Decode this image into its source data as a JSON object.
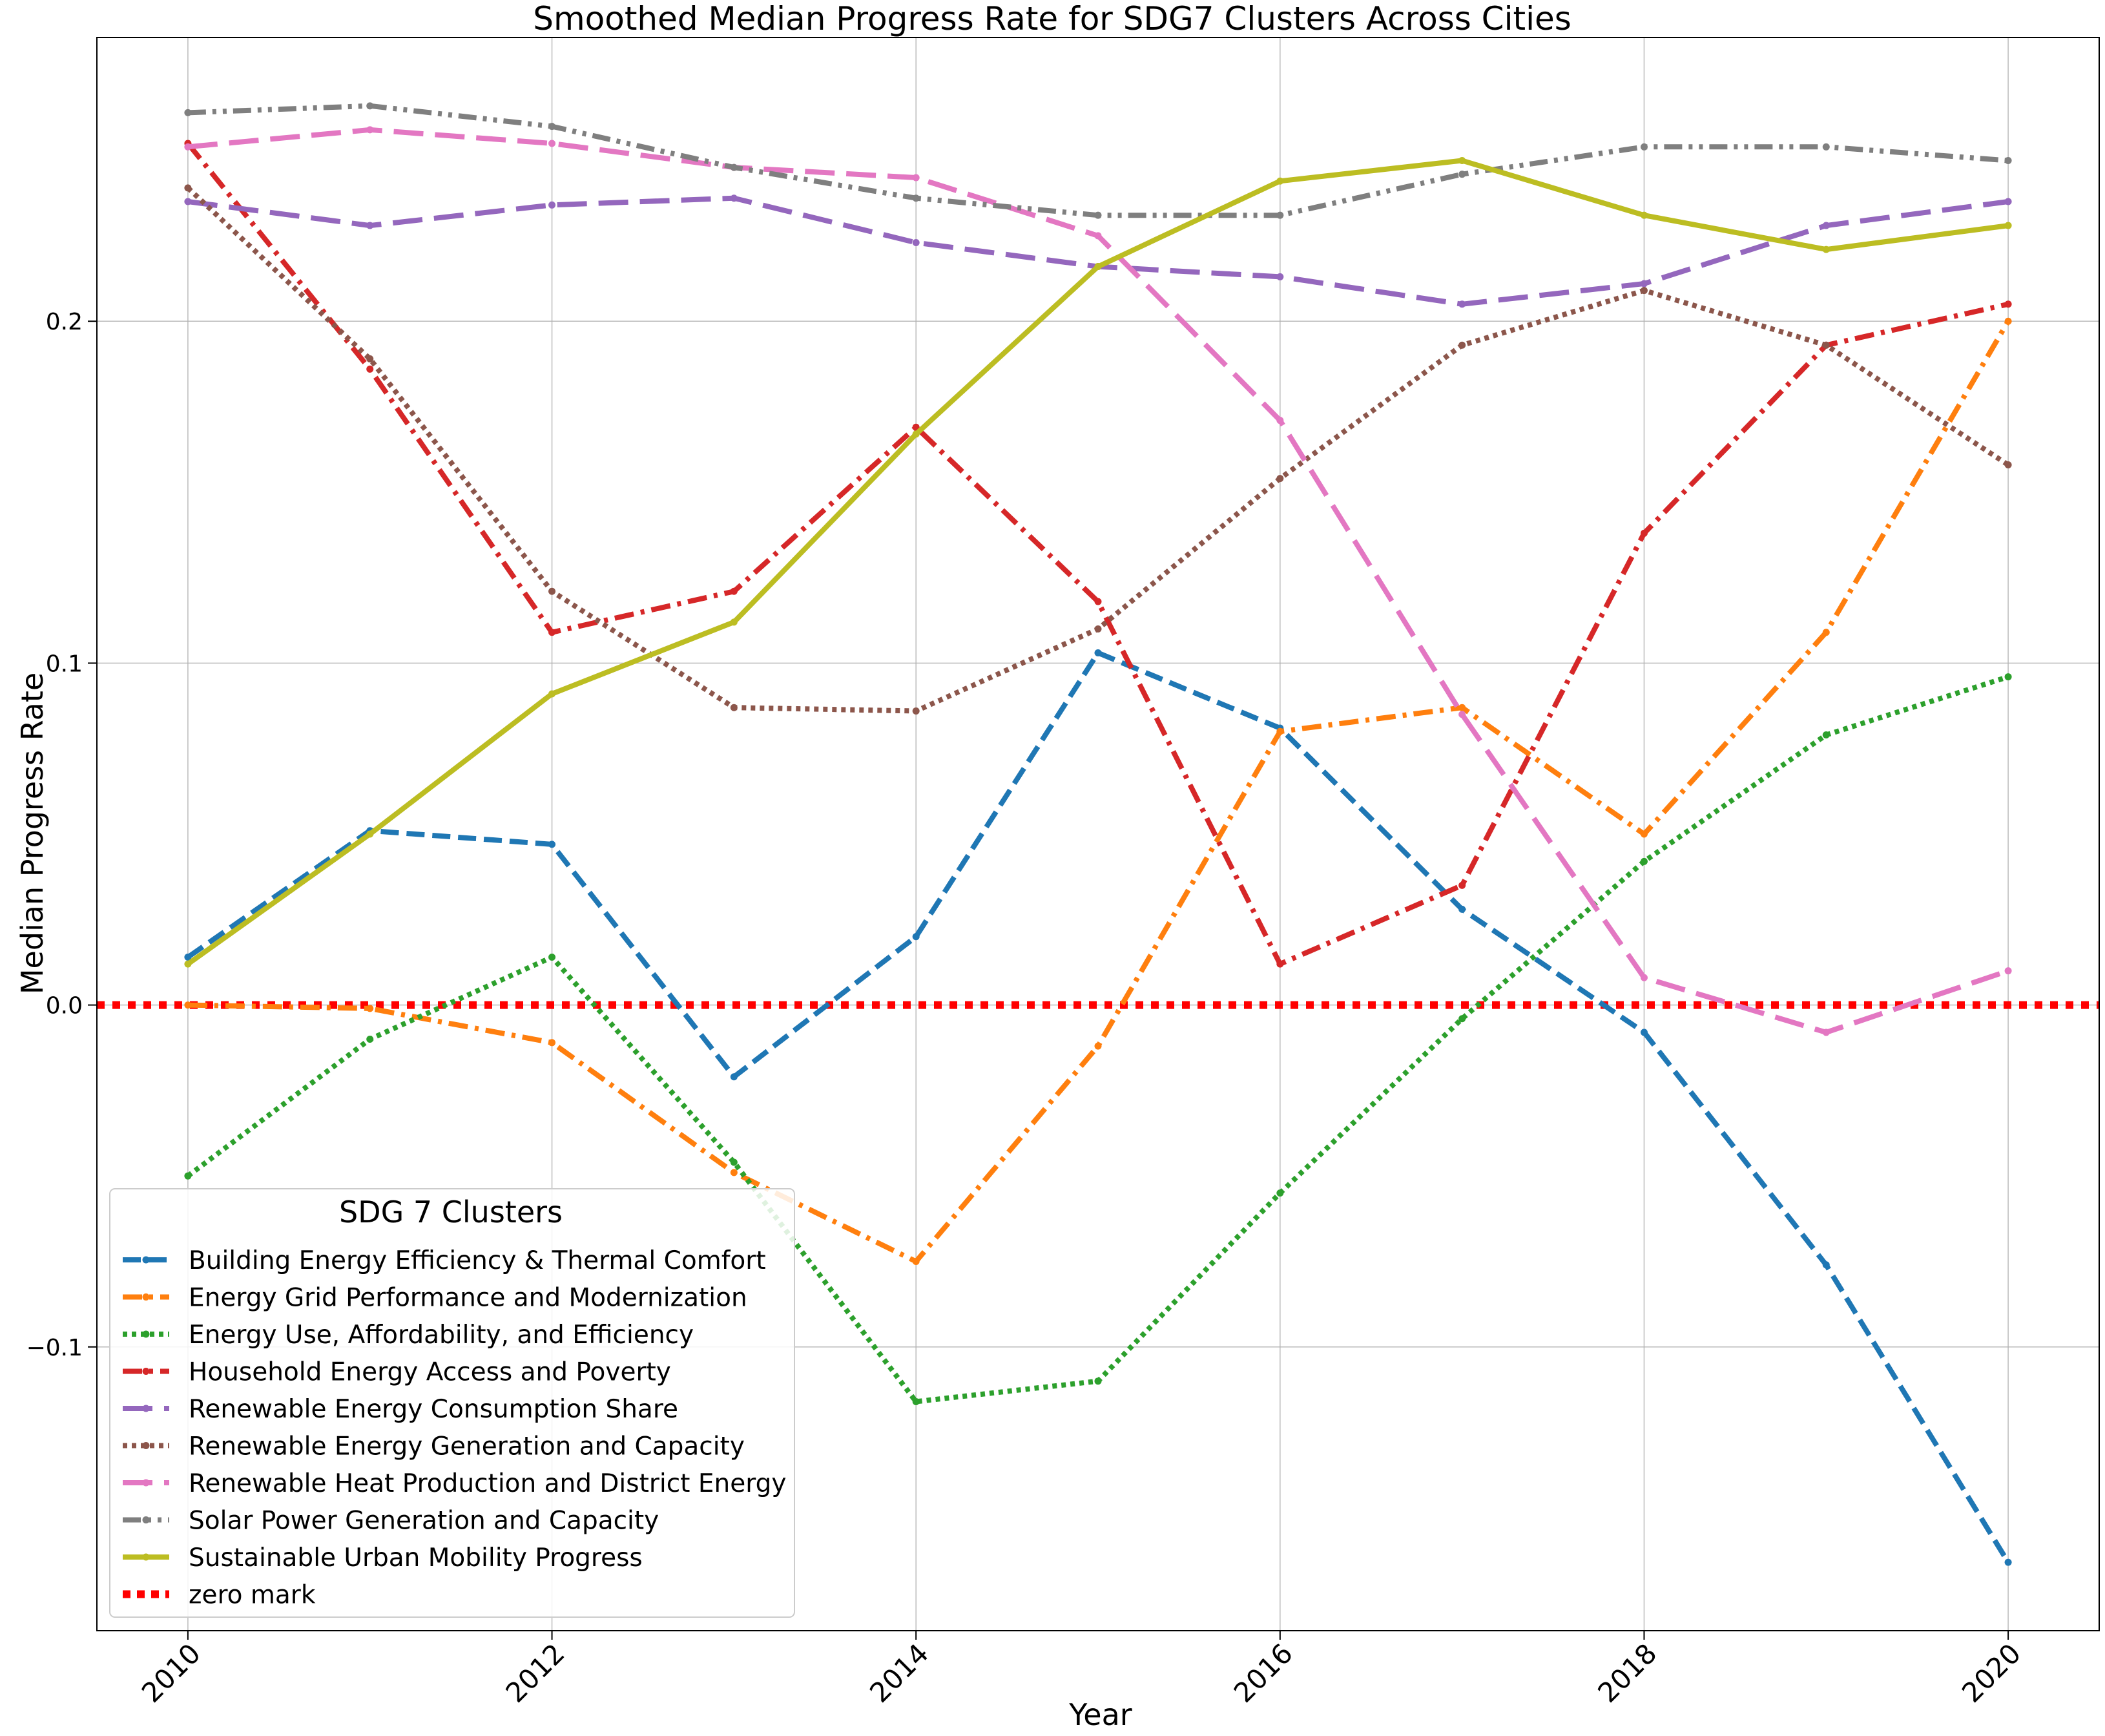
{
  "chart_data": {
    "type": "line",
    "title": "Smoothed Median Progress Rate for SDG7 Clusters Across Cities",
    "xlabel": "Year",
    "ylabel": "Median Progress Rate",
    "x": [
      2010,
      2011,
      2012,
      2013,
      2014,
      2015,
      2016,
      2017,
      2018,
      2019,
      2020
    ],
    "xlim": [
      2009.5,
      2020.5
    ],
    "ylim": [
      -0.183,
      0.283
    ],
    "xticks": [
      "2010",
      "2012",
      "2014",
      "2016",
      "2018",
      "2020"
    ],
    "yticks": [
      "−0.1",
      "0.0",
      "0.1",
      "0.2"
    ],
    "grid": true,
    "legend": {
      "title": "SDG 7 Clusters",
      "placement": "lower-left"
    },
    "series": [
      {
        "name": "Building Energy Efficiency & Thermal Comfort",
        "color": "#1f77b4",
        "style": "dashed",
        "values": [
          0.014,
          0.051,
          0.047,
          -0.021,
          0.02,
          0.103,
          0.081,
          0.028,
          -0.008,
          -0.076,
          -0.163
        ]
      },
      {
        "name": "Energy Grid Performance and Modernization",
        "color": "#ff7f0e",
        "style": "dashdot",
        "values": [
          0.0,
          -0.001,
          -0.011,
          -0.049,
          -0.075,
          -0.012,
          0.08,
          0.087,
          0.05,
          0.109,
          0.2
        ]
      },
      {
        "name": "Energy Use, Affordability, and Efficiency",
        "color": "#2ca02c",
        "style": "dotted",
        "values": [
          -0.05,
          -0.01,
          0.014,
          -0.046,
          -0.116,
          -0.11,
          -0.055,
          -0.004,
          0.042,
          0.079,
          0.096
        ]
      },
      {
        "name": "Household Energy Access and Poverty",
        "color": "#d62728",
        "style": "dashdot",
        "values": [
          0.252,
          0.186,
          0.109,
          0.121,
          0.169,
          0.118,
          0.012,
          0.035,
          0.138,
          0.193,
          0.205
        ]
      },
      {
        "name": "Renewable Energy Consumption Share",
        "color": "#9467bd",
        "style": "longdash",
        "values": [
          0.235,
          0.228,
          0.234,
          0.236,
          0.223,
          0.216,
          0.213,
          0.205,
          0.211,
          0.228,
          0.235
        ]
      },
      {
        "name": "Renewable Energy Generation and Capacity",
        "color": "#8c564b",
        "style": "dotted",
        "values": [
          0.239,
          0.189,
          0.121,
          0.087,
          0.086,
          0.11,
          0.154,
          0.193,
          0.209,
          0.193,
          0.158
        ]
      },
      {
        "name": "Renewable Heat Production and District Energy",
        "color": "#e377c2",
        "style": "longdash",
        "values": [
          0.251,
          0.256,
          0.252,
          0.245,
          0.242,
          0.225,
          0.171,
          0.085,
          0.008,
          -0.008,
          0.01
        ]
      },
      {
        "name": "Solar Power Generation and Capacity",
        "color": "#7f7f7f",
        "style": "dashdotdot",
        "values": [
          0.261,
          0.263,
          0.257,
          0.245,
          0.236,
          0.231,
          0.231,
          0.243,
          0.251,
          0.251,
          0.247
        ]
      },
      {
        "name": "Sustainable Urban Mobility Progress",
        "color": "#bcbd22",
        "style": "solid",
        "values": [
          0.012,
          0.05,
          0.091,
          0.112,
          0.167,
          0.216,
          0.241,
          0.247,
          0.231,
          0.221,
          0.228
        ]
      }
    ],
    "reference_line": {
      "name": "zero mark",
      "y": 0.0,
      "color": "#ff0000",
      "style": "dotted"
    }
  }
}
